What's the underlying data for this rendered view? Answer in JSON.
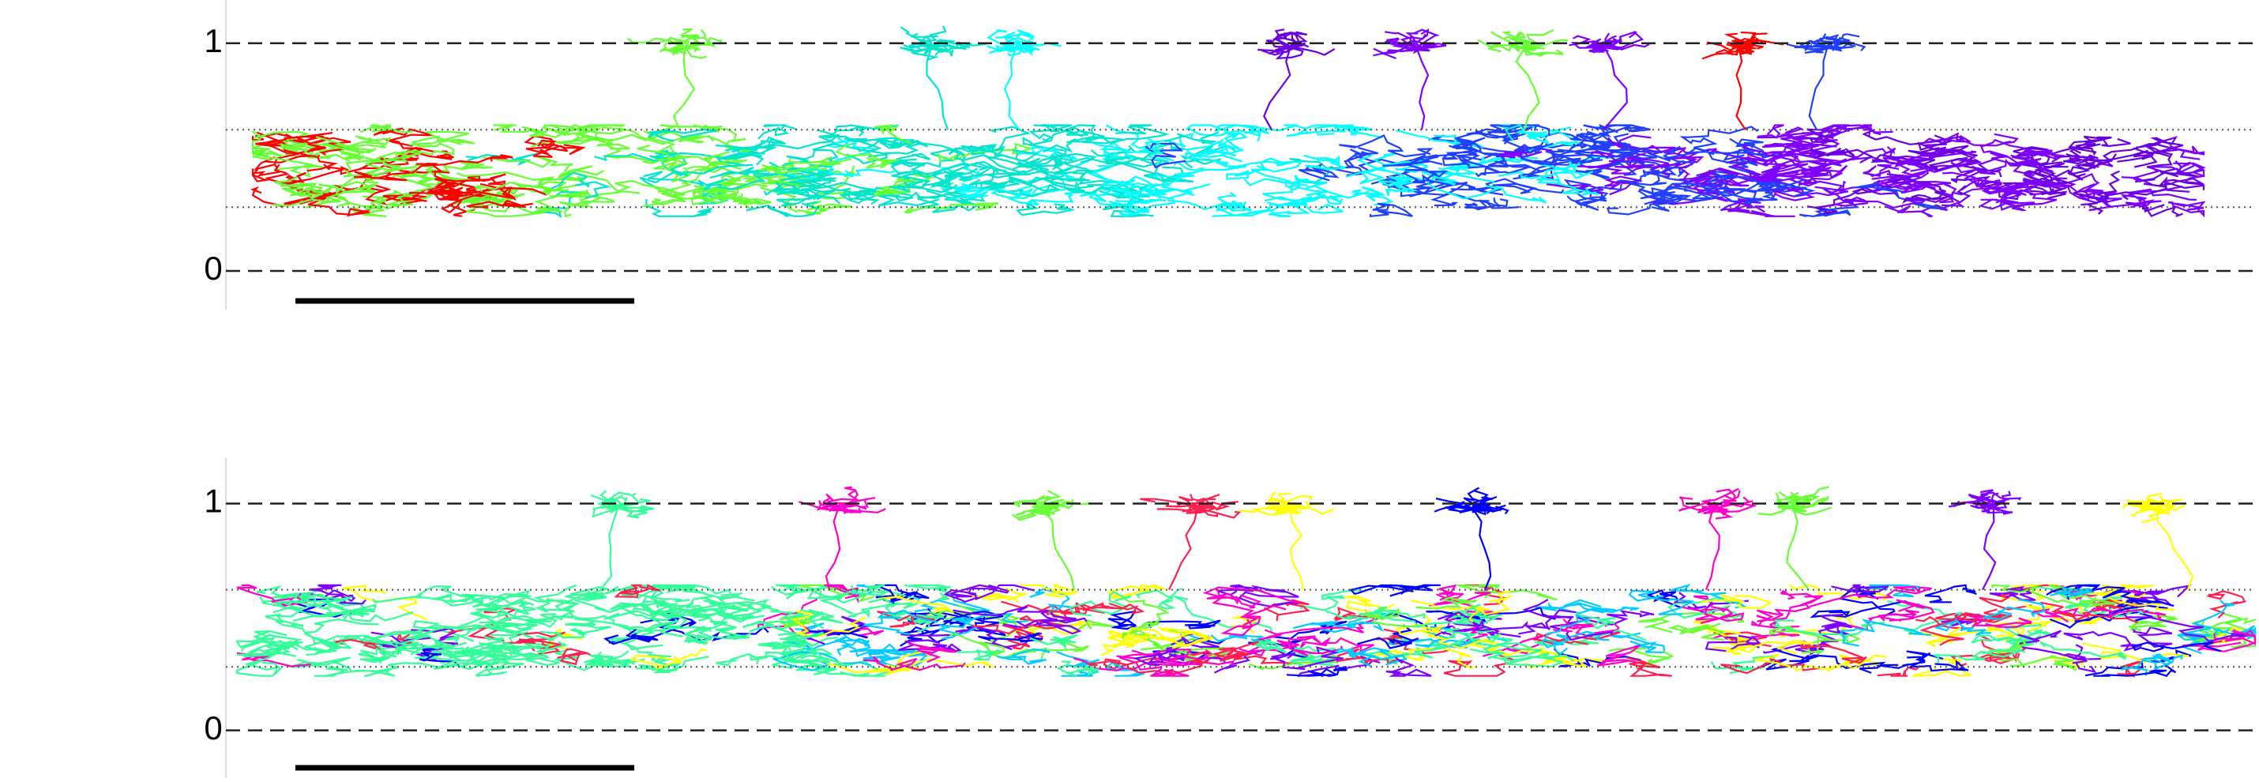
{
  "chart_data": [
    {
      "type": "morphology",
      "ylim": [
        -0.17,
        1.19
      ],
      "yticks": [
        0,
        1
      ],
      "boundaries": [
        0.28,
        0.62
      ],
      "palette": [
        "#ff0000",
        "#66ff33",
        "#00e5cc",
        "#00ffff",
        "#2040ff",
        "#8000ff",
        "#6a00e0"
      ]
    },
    {
      "type": "morphology",
      "ylim": [
        -0.21,
        1.2
      ],
      "yticks": [
        0,
        1
      ],
      "boundaries": [
        0.28,
        0.62
      ],
      "palette": [
        "#33ff99",
        "#66ff33",
        "#ff00cc",
        "#ffff00",
        "#0000ff",
        "#ff2050",
        "#00ccff",
        "#8000ff"
      ]
    }
  ]
}
